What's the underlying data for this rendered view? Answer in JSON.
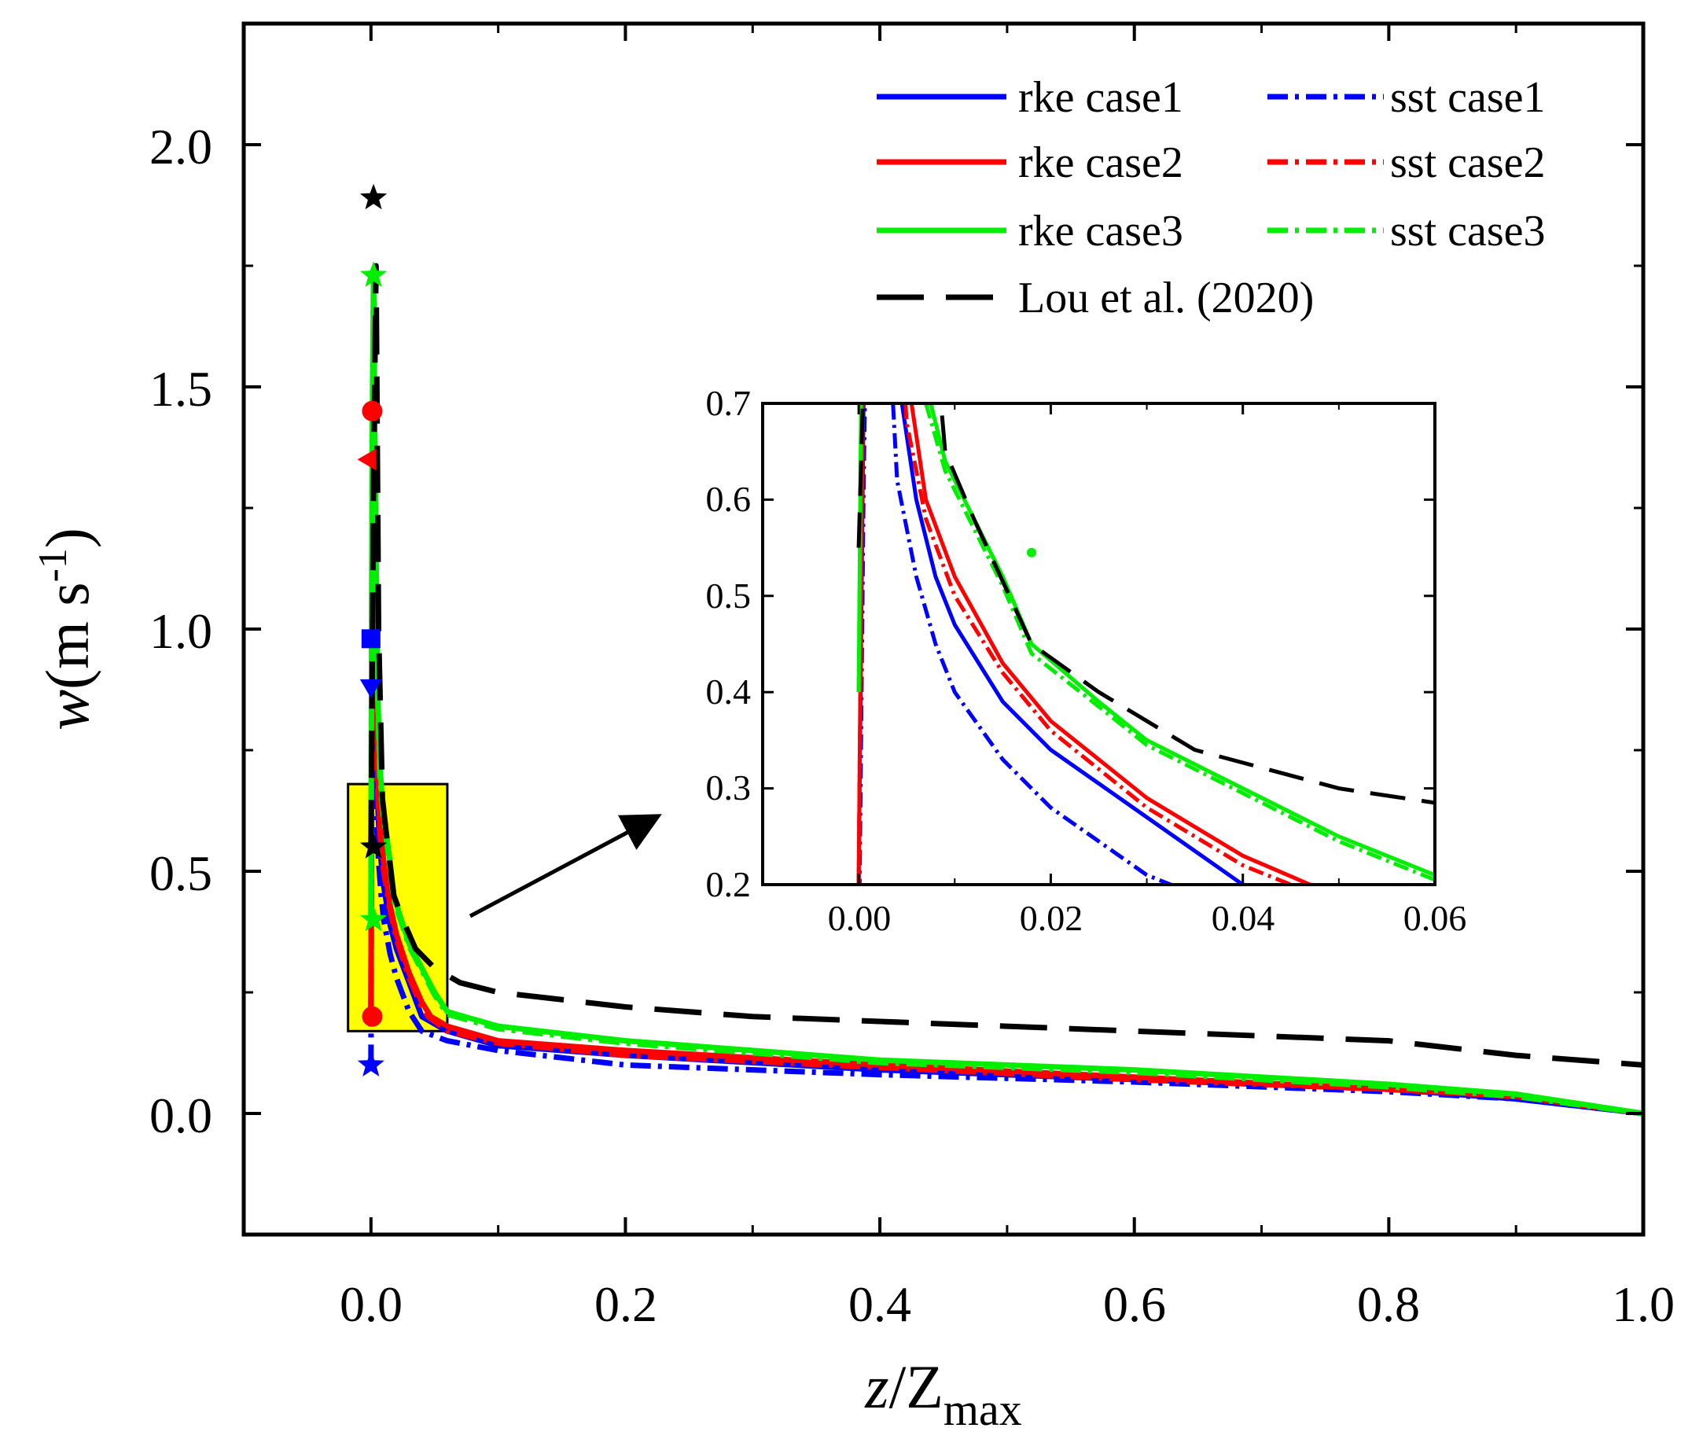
{
  "chart_data": {
    "type": "line",
    "title": "",
    "xlabel": {
      "var": "z",
      "sep": "/",
      "main": "Z",
      "sub": "max"
    },
    "ylabel": {
      "var": "w",
      "open": "(m s",
      "sup": "-1",
      "close": ")"
    },
    "xlim": [
      -0.1,
      1.0
    ],
    "ylim": [
      -0.25,
      2.25
    ],
    "xticks": [
      "0.0",
      "0.2",
      "0.4",
      "0.6",
      "0.8",
      "1.0"
    ],
    "yticks": [
      "0.0",
      "0.5",
      "1.0",
      "1.5",
      "2.0"
    ],
    "xtick_values": [
      0.0,
      0.2,
      0.4,
      0.6,
      0.8,
      1.0
    ],
    "ytick_values": [
      0.0,
      0.5,
      1.0,
      1.5,
      2.0
    ],
    "legend": {
      "position": "top-right",
      "entries": [
        {
          "label": "rke case1",
          "series": "rke1"
        },
        {
          "label": "sst case1",
          "series": "sst1"
        },
        {
          "label": "rke case2",
          "series": "rke2"
        },
        {
          "label": "sst case2",
          "series": "sst2"
        },
        {
          "label": "rke case3",
          "series": "rke3"
        },
        {
          "label": "sst case3",
          "series": "sst3"
        },
        {
          "label": "Lou et al. (2020)",
          "series": "lou"
        }
      ]
    },
    "series": [
      {
        "id": "lou",
        "name": "Lou et al. (2020)",
        "color": "#000000",
        "style": "dashed",
        "x": [
          0,
          0.001,
          0.002,
          0.004,
          0.006,
          0.009,
          0.012,
          0.018,
          0.025,
          0.035,
          0.05,
          0.07,
          0.1,
          0.2,
          0.3,
          0.4,
          0.5,
          0.6,
          0.7,
          0.8,
          0.9,
          1.0
        ],
        "y": [
          0.55,
          0.9,
          1.3,
          1.75,
          1.0,
          0.65,
          0.58,
          0.45,
          0.4,
          0.34,
          0.3,
          0.27,
          0.25,
          0.22,
          0.2,
          0.19,
          0.18,
          0.17,
          0.16,
          0.15,
          0.12,
          0.1
        ]
      },
      {
        "id": "rke1",
        "name": "rke case1",
        "color": "#0000ff",
        "style": "solid",
        "x": [
          0,
          0.0005,
          0.001,
          0.002,
          0.003,
          0.0045,
          0.006,
          0.008,
          0.01,
          0.015,
          0.02,
          0.03,
          0.04,
          0.06,
          0.1,
          0.2,
          0.4,
          0.6,
          0.8,
          0.9,
          1.0
        ],
        "y": [
          0.2,
          0.7,
          1.0,
          1.4,
          1.0,
          0.7,
          0.6,
          0.52,
          0.47,
          0.39,
          0.34,
          0.27,
          0.2,
          0.17,
          0.14,
          0.12,
          0.09,
          0.07,
          0.05,
          0.03,
          0.0
        ]
      },
      {
        "id": "sst1",
        "name": "sst case1",
        "color": "#0000ff",
        "style": "dashdot",
        "x": [
          0,
          0.0005,
          0.001,
          0.002,
          0.0025,
          0.004,
          0.006,
          0.008,
          0.01,
          0.015,
          0.02,
          0.03,
          0.04,
          0.06,
          0.1,
          0.2,
          0.4,
          0.6,
          0.8,
          0.9,
          1.0
        ],
        "y": [
          0.1,
          0.6,
          0.95,
          1.3,
          0.9,
          0.62,
          0.52,
          0.45,
          0.4,
          0.33,
          0.28,
          0.21,
          0.17,
          0.15,
          0.13,
          0.1,
          0.08,
          0.065,
          0.045,
          0.03,
          0.0
        ]
      },
      {
        "id": "rke2",
        "name": "rke case2",
        "color": "#ff0000",
        "style": "solid",
        "x": [
          0,
          0.0005,
          0.001,
          0.002,
          0.003,
          0.0055,
          0.007,
          0.01,
          0.015,
          0.02,
          0.03,
          0.04,
          0.047,
          0.06,
          0.1,
          0.2,
          0.4,
          0.6,
          0.8,
          0.9,
          1.0
        ],
        "y": [
          0.2,
          0.8,
          1.2,
          1.45,
          1.1,
          0.7,
          0.6,
          0.52,
          0.43,
          0.37,
          0.29,
          0.23,
          0.2,
          0.18,
          0.15,
          0.13,
          0.1,
          0.075,
          0.05,
          0.035,
          0.0
        ]
      },
      {
        "id": "sst2",
        "name": "sst case2",
        "color": "#ff0000",
        "style": "dashdot",
        "x": [
          0,
          0.0005,
          0.001,
          0.002,
          0.003,
          0.005,
          0.007,
          0.01,
          0.015,
          0.02,
          0.03,
          0.04,
          0.045,
          0.06,
          0.1,
          0.2,
          0.4,
          0.6,
          0.8,
          0.9,
          1.0
        ],
        "y": [
          0.2,
          0.8,
          1.15,
          1.35,
          1.0,
          0.68,
          0.58,
          0.5,
          0.42,
          0.36,
          0.28,
          0.22,
          0.2,
          0.17,
          0.145,
          0.12,
          0.095,
          0.07,
          0.05,
          0.035,
          0.0
        ]
      },
      {
        "id": "rke3",
        "name": "rke case3",
        "color": "#00ee00",
        "style": "solid",
        "x": [
          0,
          0.0005,
          0.001,
          0.002,
          0.003,
          0.005,
          0.007,
          0.009,
          0.012,
          0.015,
          0.018,
          0.025,
          0.03,
          0.04,
          0.05,
          0.06,
          0.1,
          0.2,
          0.4,
          0.6,
          0.8,
          0.9,
          1.0
        ],
        "y": [
          0.4,
          1.0,
          1.4,
          1.72,
          1.4,
          0.9,
          0.72,
          0.64,
          0.58,
          0.52,
          0.45,
          0.39,
          0.35,
          0.3,
          0.25,
          0.21,
          0.18,
          0.15,
          0.11,
          0.09,
          0.06,
          0.04,
          0.0
        ]
      },
      {
        "id": "sst3",
        "name": "sst case3",
        "color": "#00ee00",
        "style": "dashdot",
        "x": [
          0,
          0.0005,
          0.001,
          0.002,
          0.003,
          0.005,
          0.007,
          0.009,
          0.012,
          0.015,
          0.018,
          0.025,
          0.03,
          0.04,
          0.05,
          0.06,
          0.1,
          0.2,
          0.4,
          0.6,
          0.8,
          0.9,
          1.0
        ],
        "y": [
          0.4,
          0.95,
          1.35,
          1.72,
          1.35,
          0.88,
          0.7,
          0.63,
          0.57,
          0.51,
          0.44,
          0.385,
          0.345,
          0.295,
          0.245,
          0.205,
          0.175,
          0.145,
          0.105,
          0.085,
          0.055,
          0.035,
          0.0
        ]
      }
    ],
    "markers": [
      {
        "series": "lou",
        "shape": "star",
        "x": 0.002,
        "y": 1.89
      },
      {
        "series": "lou",
        "shape": "star",
        "x": 0.002,
        "y": 0.55
      },
      {
        "series": "rke3",
        "shape": "star",
        "x": 0.002,
        "y": 1.73
      },
      {
        "series": "rke3",
        "shape": "star",
        "x": 0.002,
        "y": 0.4
      },
      {
        "series": "rke2",
        "shape": "circle",
        "x": 0.001,
        "y": 1.45
      },
      {
        "series": "rke2",
        "shape": "circle",
        "x": 0.001,
        "y": 0.2
      },
      {
        "series": "sst2",
        "shape": "triangle-left",
        "x": -0.002,
        "y": 1.35
      },
      {
        "series": "rke1",
        "shape": "square",
        "x": 0.0,
        "y": 0.98
      },
      {
        "series": "sst1",
        "shape": "triangle-down",
        "x": 0.0,
        "y": 0.88
      },
      {
        "series": "rke1",
        "shape": "star",
        "x": 0.0,
        "y": 0.1
      }
    ],
    "highlight_box": {
      "x0": -0.018,
      "x1": 0.06,
      "y0": 0.17,
      "y1": 0.68,
      "color": "#ffff00"
    },
    "inset": {
      "xlim": [
        -0.01,
        0.06
      ],
      "ylim": [
        0.2,
        0.7
      ],
      "xticks": [
        "0.00",
        "0.02",
        "0.04",
        "0.06"
      ],
      "yticks": [
        "0.2",
        "0.3",
        "0.4",
        "0.5",
        "0.6",
        "0.7"
      ],
      "xtick_values": [
        0.0,
        0.02,
        0.04,
        0.06
      ],
      "ytick_values": [
        0.2,
        0.3,
        0.4,
        0.5,
        0.6,
        0.7
      ],
      "extra_points": [
        {
          "series": "sst3",
          "x": 0.018,
          "y": 0.545
        }
      ]
    }
  }
}
